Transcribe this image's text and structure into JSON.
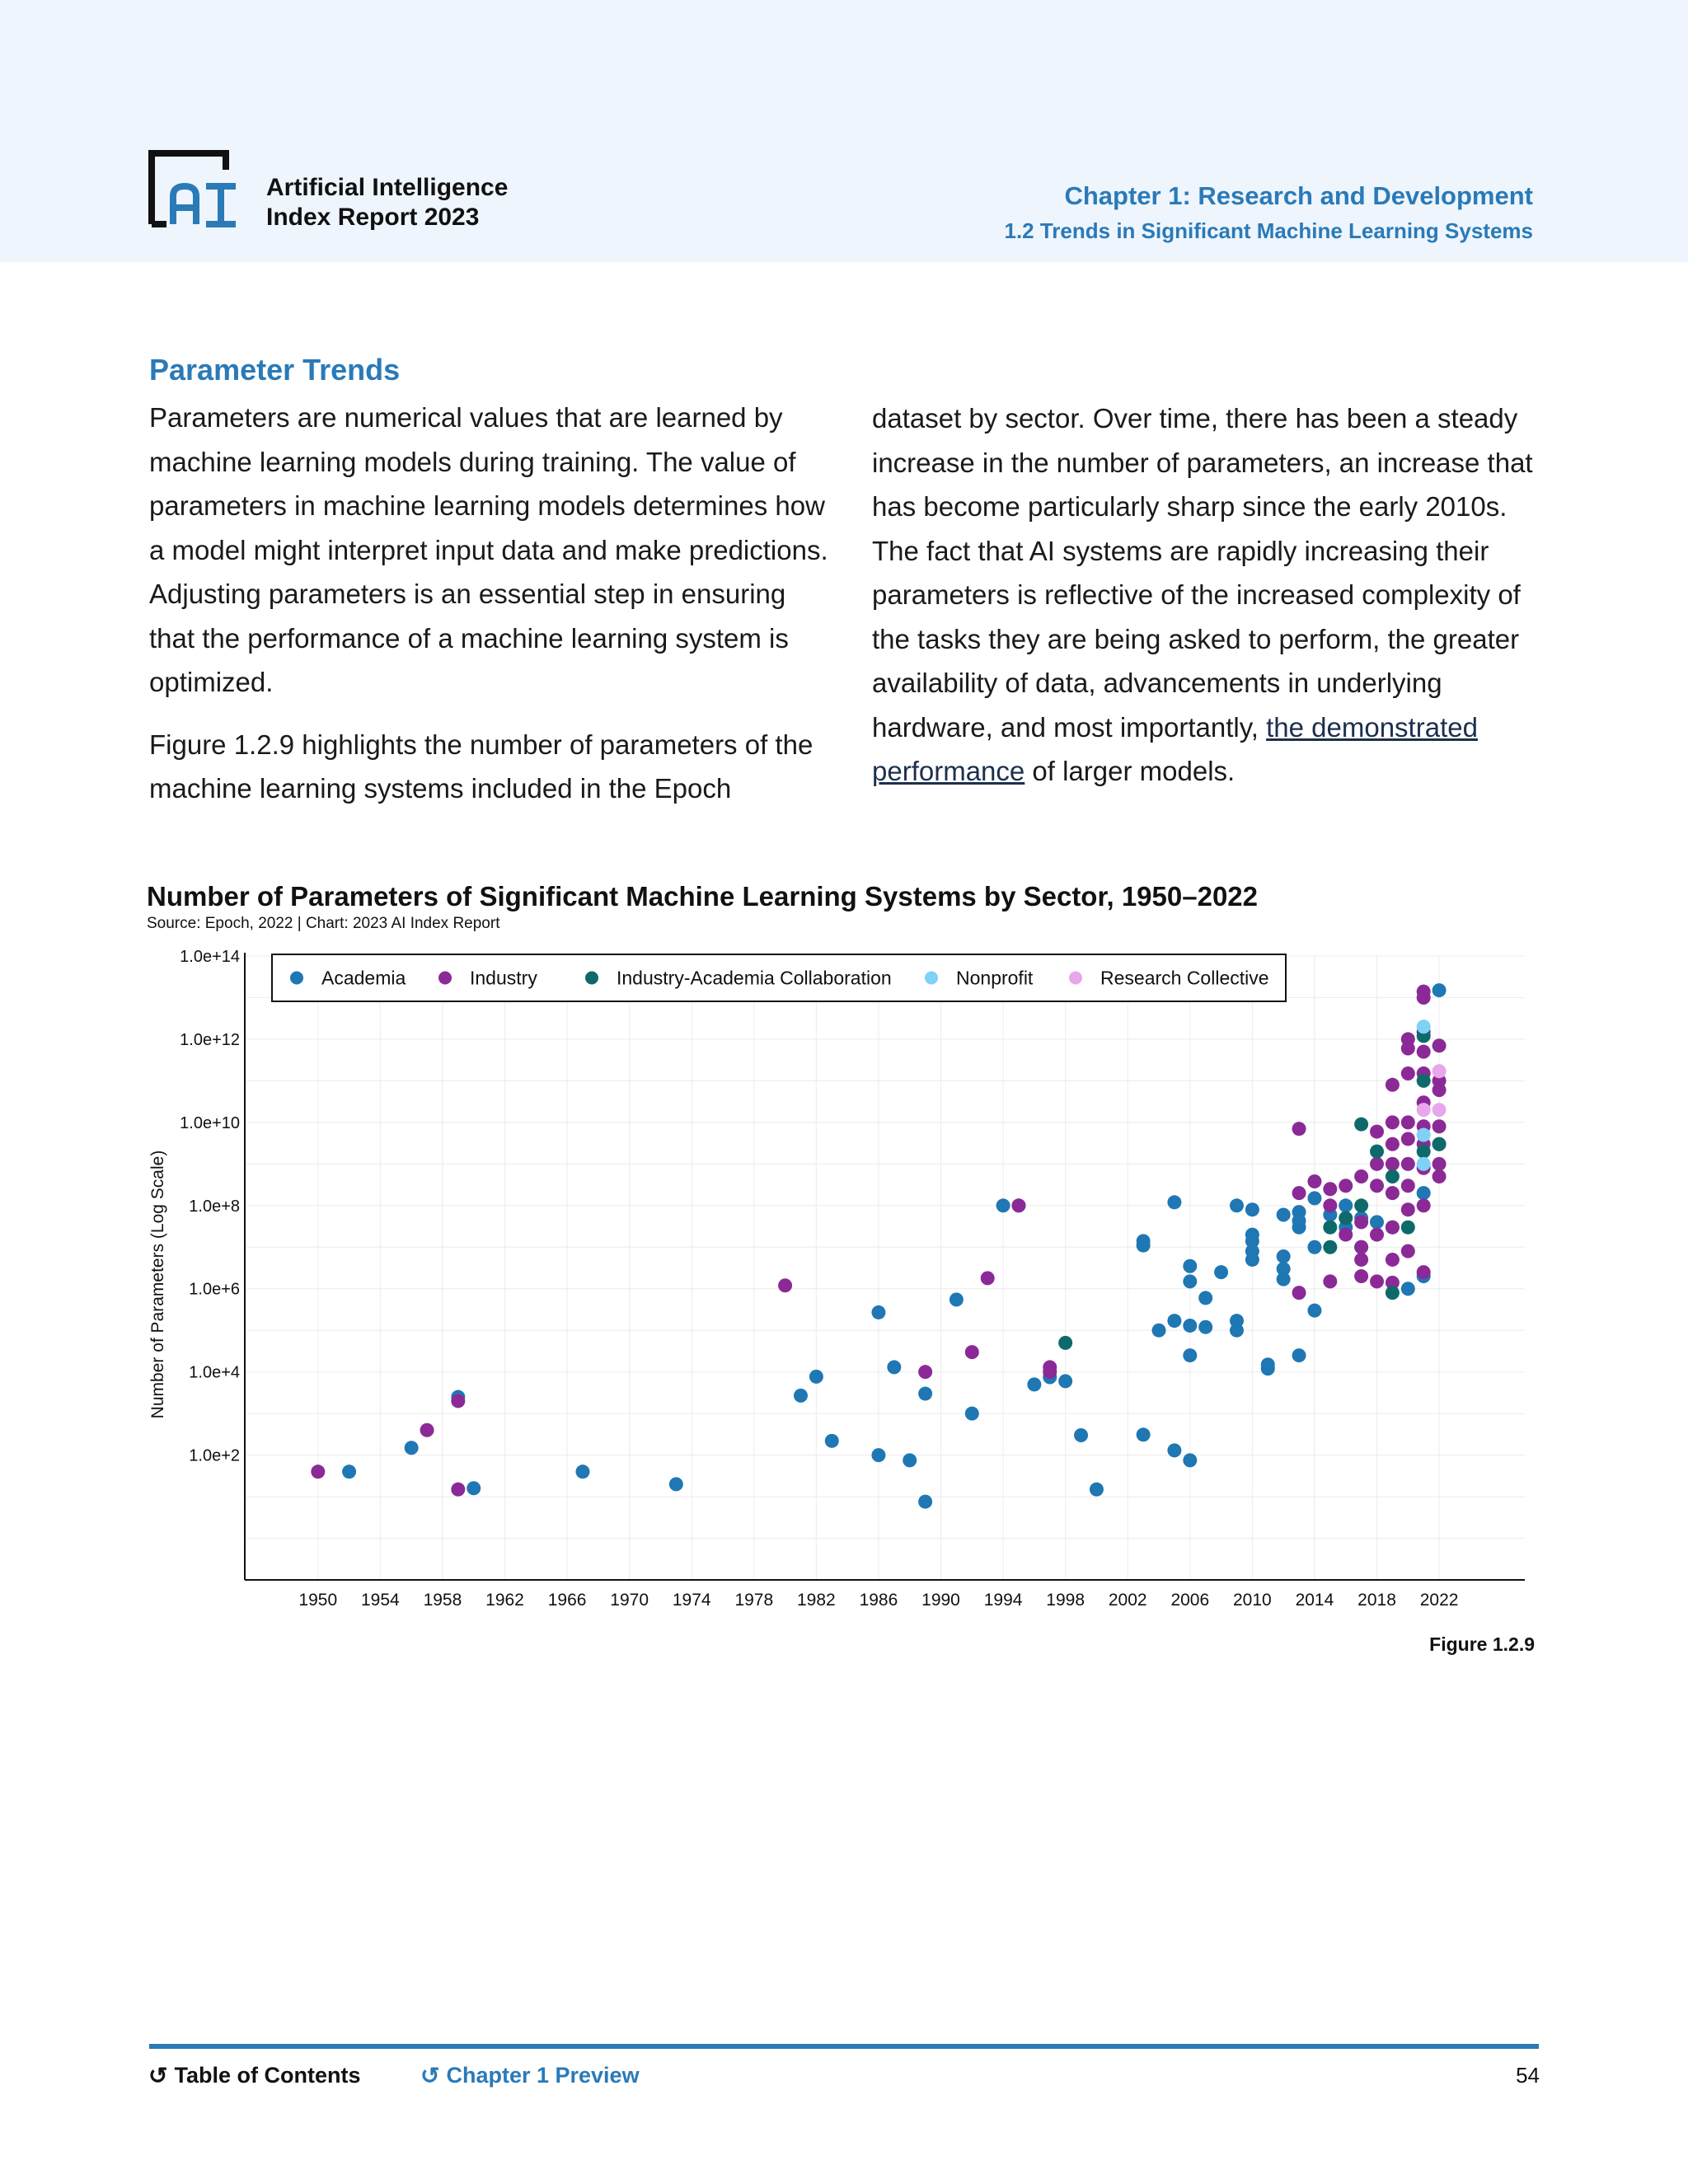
{
  "header": {
    "report_title_line1": "Artificial Intelligence",
    "report_title_line2": "Index Report 2023",
    "chapter_title": "Chapter 1: Research and Development",
    "section_title": "1.2 Trends in Significant Machine Learning Systems"
  },
  "article": {
    "heading": "Parameter Trends",
    "para1": "Parameters are numerical values that are learned by machine learning models during training. The value of parameters in machine learning models determines how a model might interpret input data and make predictions. Adjusting parameters is an essential step in ensuring that the performance of a machine learning system is optimized.",
    "para2": "Figure 1.2.9 highlights the number of parameters of the machine learning systems included in the Epoch dataset by sector. Over time, there has been a steady increase in the number of parameters, an increase that has become particularly sharp since the early 2010s. The fact that AI systems are rapidly increasing their parameters is reflective of the increased complexity of the tasks they are being asked to perform, the greater availability of data, advancements in underlying hardware, and most importantly,",
    "link_text": "the demonstrated performance",
    "para2_end": " of larger models."
  },
  "figure_label": "Figure 1.2.9",
  "footer": {
    "toc_label": "Table of Contents",
    "chapter_preview_label": "Chapter 1 Preview",
    "page_number": "54"
  },
  "chart_data": {
    "type": "scatter",
    "title": "Number of Parameters of Significant Machine Learning Systems by Sector, 1950–2022",
    "source": "Source: Epoch, 2022 | Chart: 2023 AI Index Report",
    "xlabel": "",
    "ylabel": "Number of Parameters (Log Scale)",
    "y_scale": "log",
    "xlim": [
      1945.3,
      2027.5
    ],
    "ylim": [
      0.1,
      100000000000000.0
    ],
    "x_ticks": [
      1950,
      1954,
      1958,
      1962,
      1966,
      1970,
      1974,
      1978,
      1982,
      1986,
      1990,
      1994,
      1998,
      2002,
      2006,
      2010,
      2014,
      2018,
      2022
    ],
    "y_ticks": [
      {
        "value": 100,
        "label": "1.0e+2"
      },
      {
        "value": 10000,
        "label": "1.0e+4"
      },
      {
        "value": 1000000,
        "label": "1.0e+6"
      },
      {
        "value": 100000000,
        "label": "1.0e+8"
      },
      {
        "value": 10000000000,
        "label": "1.0e+10"
      },
      {
        "value": 1000000000000,
        "label": "1.0e+12"
      },
      {
        "value": 100000000000000,
        "label": "1.0e+14"
      }
    ],
    "grid": true,
    "legend_position": "top",
    "series": [
      {
        "name": "Academia",
        "color": "#1f77b4",
        "points": [
          [
            1952,
            40
          ],
          [
            1956,
            150
          ],
          [
            1959,
            2500
          ],
          [
            1960,
            16
          ],
          [
            1967,
            40
          ],
          [
            1973,
            20
          ],
          [
            1981,
            2700
          ],
          [
            1982,
            7700
          ],
          [
            1983,
            220
          ],
          [
            1986,
            100
          ],
          [
            1986,
            270000
          ],
          [
            1987,
            13000
          ],
          [
            1988,
            75
          ],
          [
            1989,
            7.6
          ],
          [
            1989,
            3000
          ],
          [
            1991,
            550000
          ],
          [
            1992,
            1000
          ],
          [
            1994,
            100000000
          ],
          [
            1995,
            100000000
          ],
          [
            1996,
            5000
          ],
          [
            1997,
            7500
          ],
          [
            1998,
            6000
          ],
          [
            1999,
            300
          ],
          [
            2000,
            15
          ],
          [
            2003,
            310
          ],
          [
            2003,
            11000000
          ],
          [
            2003,
            14000000
          ],
          [
            2004,
            100000
          ],
          [
            2005,
            130
          ],
          [
            2005,
            120000000
          ],
          [
            2005,
            170000
          ],
          [
            2006,
            75
          ],
          [
            2006,
            25000
          ],
          [
            2006,
            130000
          ],
          [
            2006,
            1500000
          ],
          [
            2006,
            3500000
          ],
          [
            2007,
            600000
          ],
          [
            2007,
            120000
          ],
          [
            2008,
            2500000
          ],
          [
            2009,
            100000000
          ],
          [
            2009,
            100000
          ],
          [
            2009,
            170000
          ],
          [
            2010,
            80000000
          ],
          [
            2010,
            20000000
          ],
          [
            2010,
            14000000
          ],
          [
            2010,
            8000000
          ],
          [
            2010,
            5000000
          ],
          [
            2011,
            15000
          ],
          [
            2011,
            12000
          ],
          [
            2012,
            6000000
          ],
          [
            2012,
            3000000
          ],
          [
            2012,
            1700000
          ],
          [
            2012,
            60000000
          ],
          [
            2013,
            25000
          ],
          [
            2013,
            70000000
          ],
          [
            2013,
            30000000
          ],
          [
            2013,
            43000000
          ],
          [
            2014,
            300000
          ],
          [
            2014,
            150000000
          ],
          [
            2014,
            10000000
          ],
          [
            2015,
            60000000
          ],
          [
            2016,
            100000000
          ],
          [
            2016,
            30000000
          ],
          [
            2017,
            50000000
          ],
          [
            2017,
            10000000
          ],
          [
            2018,
            40000000
          ],
          [
            2019,
            30000000
          ],
          [
            2020,
            1000000
          ],
          [
            2021,
            2000000
          ],
          [
            2021,
            200000000
          ],
          [
            2022,
            15000000000000
          ]
        ]
      },
      {
        "name": "Industry",
        "color": "#8b2a96",
        "points": [
          [
            1950,
            40
          ],
          [
            1957,
            400
          ],
          [
            1959,
            2000
          ],
          [
            1959,
            15
          ],
          [
            1980,
            1200000
          ],
          [
            1989,
            10000
          ],
          [
            1992,
            30000
          ],
          [
            1993,
            1800000
          ],
          [
            1995,
            100000000
          ],
          [
            1997,
            10000
          ],
          [
            1997,
            13000
          ],
          [
            2013,
            7000000000
          ],
          [
            2013,
            200000000
          ],
          [
            2013,
            800000
          ],
          [
            2014,
            380000000
          ],
          [
            2015,
            100000000
          ],
          [
            2015,
            250000000
          ],
          [
            2015,
            1500000
          ],
          [
            2016,
            300000000
          ],
          [
            2016,
            20000000
          ],
          [
            2017,
            500000000
          ],
          [
            2017,
            40000000
          ],
          [
            2017,
            10000000
          ],
          [
            2017,
            5000000
          ],
          [
            2017,
            2000000
          ],
          [
            2018,
            6000000000
          ],
          [
            2018,
            1000000000
          ],
          [
            2018,
            300000000
          ],
          [
            2018,
            20000000
          ],
          [
            2018,
            1500000
          ],
          [
            2019,
            80000000000
          ],
          [
            2019,
            10000000000
          ],
          [
            2019,
            3000000000
          ],
          [
            2019,
            1000000000
          ],
          [
            2019,
            200000000
          ],
          [
            2019,
            30000000
          ],
          [
            2019,
            5000000
          ],
          [
            2019,
            1400000
          ],
          [
            2020,
            1000000000000
          ],
          [
            2020,
            600000000000
          ],
          [
            2020,
            150000000000
          ],
          [
            2020,
            10000000000
          ],
          [
            2020,
            4000000000
          ],
          [
            2020,
            1000000000
          ],
          [
            2020,
            300000000
          ],
          [
            2020,
            80000000
          ],
          [
            2020,
            8000000
          ],
          [
            2021,
            14000000000000
          ],
          [
            2021,
            10000000000000
          ],
          [
            2021,
            1500000000000
          ],
          [
            2021,
            500000000000
          ],
          [
            2021,
            150000000000
          ],
          [
            2021,
            30000000000
          ],
          [
            2021,
            8000000000
          ],
          [
            2021,
            3000000000
          ],
          [
            2021,
            800000000
          ],
          [
            2021,
            100000000
          ],
          [
            2021,
            2500000
          ],
          [
            2022,
            700000000000
          ],
          [
            2022,
            100000000000
          ],
          [
            2022,
            60000000000
          ],
          [
            2022,
            8000000000
          ],
          [
            2022,
            3000000000
          ],
          [
            2022,
            1000000000
          ],
          [
            2022,
            500000000
          ]
        ]
      },
      {
        "name": "Industry-Academia Collaboration",
        "color": "#0e6a6a",
        "points": [
          [
            1998,
            50000
          ],
          [
            2015,
            10000000
          ],
          [
            2015,
            30000000
          ],
          [
            2016,
            50000000
          ],
          [
            2017,
            9000000000
          ],
          [
            2017,
            100000000
          ],
          [
            2018,
            2000000000
          ],
          [
            2019,
            500000000
          ],
          [
            2019,
            800000
          ],
          [
            2020,
            30000000
          ],
          [
            2021,
            1200000000000
          ],
          [
            2021,
            100000000000
          ],
          [
            2021,
            2000000000
          ],
          [
            2022,
            3000000000
          ]
        ]
      },
      {
        "name": "Nonprofit",
        "color": "#7fd1f5",
        "points": [
          [
            2021,
            2000000000000
          ],
          [
            2021,
            5000000000
          ],
          [
            2021,
            1000000000
          ]
        ]
      },
      {
        "name": "Research Collective",
        "color": "#e8a6ec",
        "points": [
          [
            2021,
            20000000000
          ],
          [
            2022,
            170000000000
          ],
          [
            2022,
            20000000000
          ]
        ]
      }
    ]
  }
}
